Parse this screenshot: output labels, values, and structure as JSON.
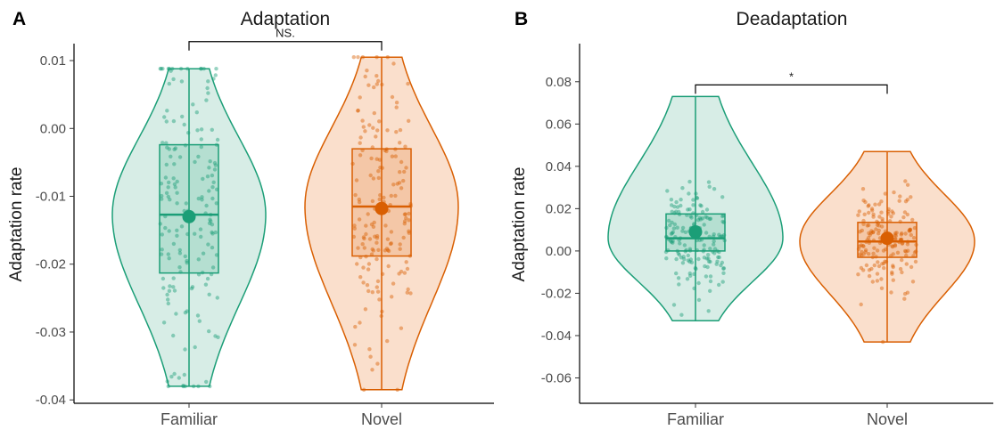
{
  "chart_data": [
    {
      "panel_letter": "A",
      "type": "violin",
      "title": "Adaptation",
      "ylabel": "Adaptation rate",
      "xlabel": "",
      "categories": [
        "Familiar",
        "Novel"
      ],
      "ylim": [
        -0.0405,
        0.0125
      ],
      "yticks": [
        0.01,
        0.0,
        -0.01,
        -0.02,
        -0.03,
        -0.04
      ],
      "ytick_labels": [
        "0.01",
        "0.00",
        "-0.01",
        "-0.02",
        "-0.03",
        "-0.04"
      ],
      "colors": {
        "Familiar": "#1b9e77",
        "Novel": "#d95f02",
        "fill_Familiar": "#d3ebe3",
        "fill_Novel": "#f9dcc6"
      },
      "groups": [
        {
          "name": "Familiar",
          "min": -0.038,
          "max": 0.0088,
          "q1": -0.0213,
          "median": -0.0127,
          "q3": -0.0024,
          "mean": -0.013
        },
        {
          "name": "Novel",
          "min": -0.0385,
          "max": 0.0105,
          "q1": -0.0188,
          "median": -0.0115,
          "q3": -0.003,
          "mean": -0.0118
        }
      ],
      "significance": {
        "label": "NS.",
        "pair": [
          "Familiar",
          "Novel"
        ],
        "y": 0.0128
      },
      "grid": false
    },
    {
      "panel_letter": "B",
      "type": "violin",
      "title": "Deadaptation",
      "ylabel": "Adaptation rate",
      "xlabel": "",
      "categories": [
        "Familiar",
        "Novel"
      ],
      "ylim": [
        -0.072,
        0.098
      ],
      "yticks": [
        0.08,
        0.06,
        0.04,
        0.02,
        0.0,
        -0.02,
        -0.04,
        -0.06
      ],
      "ytick_labels": [
        "0.08",
        "0.06",
        "0.04",
        "0.02",
        "0.00",
        "-0.02",
        "-0.04",
        "-0.06"
      ],
      "colors": {
        "Familiar": "#1b9e77",
        "Novel": "#d95f02",
        "fill_Familiar": "#d3ebe3",
        "fill_Novel": "#f9dcc6"
      },
      "groups": [
        {
          "name": "Familiar",
          "min": -0.033,
          "max": 0.073,
          "q1": 0.0,
          "median": 0.006,
          "q3": 0.0175,
          "mean": 0.009
        },
        {
          "name": "Novel",
          "min": -0.043,
          "max": 0.047,
          "q1": -0.003,
          "median": 0.0045,
          "q3": 0.0135,
          "mean": 0.006
        }
      ],
      "significance": {
        "label": "*",
        "pair": [
          "Familiar",
          "Novel"
        ],
        "y": 0.0785
      },
      "grid": false
    }
  ]
}
